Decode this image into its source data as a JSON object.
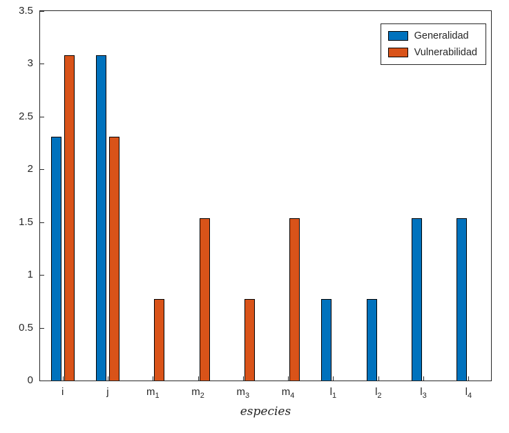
{
  "figure": {
    "background": "#ffffff",
    "axis_color": "#262626"
  },
  "chart_data": {
    "type": "bar",
    "title": "",
    "xlabel": "especies",
    "ylabel": "",
    "ylim": [
      0,
      3.5
    ],
    "yticks": [
      "0",
      "0.5",
      "1",
      "1.5",
      "2",
      "2.5",
      "3",
      "3.5"
    ],
    "categories": [
      "i",
      "j",
      "m_1",
      "m_2",
      "m_3",
      "m_4",
      "l_1",
      "l_2",
      "l_3",
      "l_4"
    ],
    "grid": false,
    "legend_position": "top-right",
    "bar_edge_color": "#000000",
    "series": [
      {
        "name": "Generalidad",
        "color": "#0072BD",
        "values": [
          2.31,
          3.08,
          0,
          0,
          0,
          0,
          0.77,
          0.77,
          1.54,
          1.54
        ]
      },
      {
        "name": "Vulnerabilidad",
        "color": "#D95319",
        "values": [
          3.08,
          2.31,
          0.77,
          1.54,
          0.77,
          1.54,
          0,
          0,
          0,
          0
        ]
      }
    ]
  }
}
